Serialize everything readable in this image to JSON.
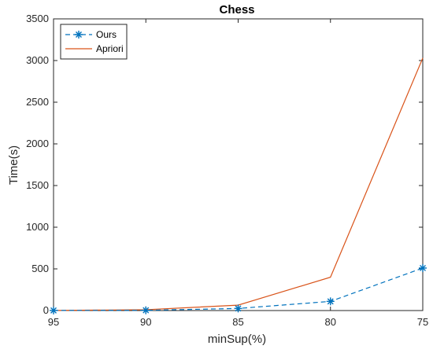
{
  "chart_data": {
    "type": "line",
    "title": "Chess",
    "xlabel": "minSup(%)",
    "ylabel": "Time(s)",
    "categories": [
      "95",
      "90",
      "85",
      "80",
      "75"
    ],
    "xlim": [
      95,
      75
    ],
    "x": [
      95,
      90,
      85,
      80,
      75
    ],
    "ylim": [
      0,
      3500
    ],
    "yticks": [
      0,
      500,
      1000,
      1500,
      2000,
      2500,
      3000,
      3500
    ],
    "yticklabels": [
      "0",
      "500",
      "1000",
      "1500",
      "2000",
      "2500",
      "3000",
      "3500"
    ],
    "grid": false,
    "legend_position": "top-left",
    "series": [
      {
        "name": "Ours",
        "values": [
          1,
          3,
          25,
          110,
          510
        ],
        "color": "#0072BD",
        "style": "dashed",
        "marker": "asterisk"
      },
      {
        "name": "Apriori",
        "values": [
          1,
          10,
          65,
          400,
          3030
        ],
        "color": "#D95319",
        "style": "solid",
        "marker": "none"
      }
    ]
  }
}
